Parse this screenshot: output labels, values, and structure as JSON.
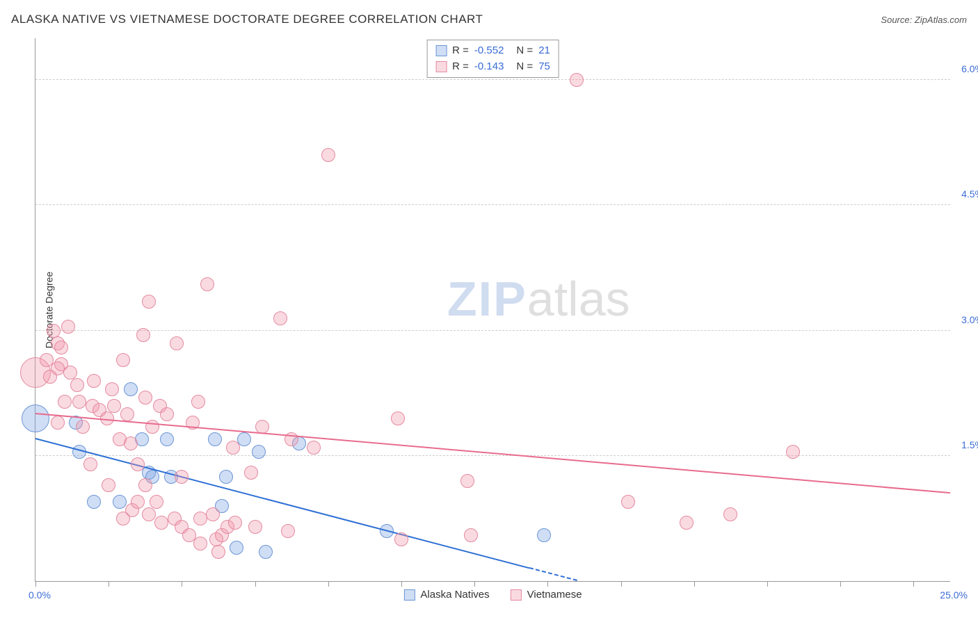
{
  "title": "ALASKA NATIVE VS VIETNAMESE DOCTORATE DEGREE CORRELATION CHART",
  "source_label": "Source:",
  "source_name": "ZipAtlas.com",
  "y_axis_title": "Doctorate Degree",
  "chart": {
    "type": "scatter",
    "xlim": [
      0,
      25
    ],
    "ylim": [
      0,
      6.5
    ],
    "x_origin_label": "0.0%",
    "x_max_label": "25.0%",
    "y_ticks": [
      1.5,
      3.0,
      4.5,
      6.0
    ],
    "y_tick_labels": [
      "1.5%",
      "3.0%",
      "4.5%",
      "6.0%"
    ],
    "x_tick_positions": [
      0,
      2,
      4,
      6,
      8,
      10,
      12,
      14,
      16,
      18,
      20,
      22,
      24
    ],
    "background_color": "#ffffff",
    "grid_color": "#cccccc",
    "axis_color": "#999999",
    "series": [
      {
        "name": "Alaska Natives",
        "fill": "rgba(120, 160, 225, 0.35)",
        "stroke": "#6a95d6",
        "trend_color": "#2d6fd4",
        "trend": {
          "x1": 0,
          "y1": 1.7,
          "x2": 14.8,
          "y2": 0.0,
          "dash_after_x": 13.5
        },
        "marker_r": 10,
        "points": [
          {
            "x": 0.0,
            "y": 1.95,
            "r": 20
          },
          {
            "x": 1.1,
            "y": 1.9
          },
          {
            "x": 1.2,
            "y": 1.55
          },
          {
            "x": 2.6,
            "y": 2.3
          },
          {
            "x": 1.6,
            "y": 0.95
          },
          {
            "x": 2.3,
            "y": 0.95
          },
          {
            "x": 3.1,
            "y": 1.3
          },
          {
            "x": 2.9,
            "y": 1.7
          },
          {
            "x": 3.2,
            "y": 1.25
          },
          {
            "x": 3.7,
            "y": 1.25
          },
          {
            "x": 3.6,
            "y": 1.7
          },
          {
            "x": 5.1,
            "y": 0.9
          },
          {
            "x": 5.7,
            "y": 1.7
          },
          {
            "x": 4.9,
            "y": 1.7
          },
          {
            "x": 6.1,
            "y": 1.55
          },
          {
            "x": 5.2,
            "y": 1.25
          },
          {
            "x": 5.5,
            "y": 0.4
          },
          {
            "x": 6.3,
            "y": 0.35
          },
          {
            "x": 7.2,
            "y": 1.65
          },
          {
            "x": 9.6,
            "y": 0.6
          },
          {
            "x": 13.9,
            "y": 0.55
          }
        ]
      },
      {
        "name": "Vietnamese",
        "fill": "rgba(240, 150, 170, 0.35)",
        "stroke": "#e4899f",
        "trend_color": "#e86b8e",
        "trend": {
          "x1": 0,
          "y1": 2.0,
          "x2": 25,
          "y2": 1.05
        },
        "marker_r": 10,
        "points": [
          {
            "x": 0.0,
            "y": 2.5,
            "r": 22
          },
          {
            "x": 0.3,
            "y": 2.65
          },
          {
            "x": 0.5,
            "y": 3.0
          },
          {
            "x": 0.6,
            "y": 2.85
          },
          {
            "x": 0.4,
            "y": 2.45
          },
          {
            "x": 0.8,
            "y": 2.15
          },
          {
            "x": 0.6,
            "y": 1.9
          },
          {
            "x": 0.7,
            "y": 2.6
          },
          {
            "x": 0.7,
            "y": 2.8
          },
          {
            "x": 0.6,
            "y": 2.55
          },
          {
            "x": 0.95,
            "y": 2.5
          },
          {
            "x": 0.9,
            "y": 3.05
          },
          {
            "x": 1.15,
            "y": 2.35
          },
          {
            "x": 1.2,
            "y": 2.15
          },
          {
            "x": 1.3,
            "y": 1.85
          },
          {
            "x": 1.6,
            "y": 2.4
          },
          {
            "x": 1.55,
            "y": 2.1
          },
          {
            "x": 1.5,
            "y": 1.4
          },
          {
            "x": 1.75,
            "y": 2.05
          },
          {
            "x": 1.95,
            "y": 1.95
          },
          {
            "x": 2.15,
            "y": 2.1
          },
          {
            "x": 2.0,
            "y": 1.15
          },
          {
            "x": 2.1,
            "y": 2.3
          },
          {
            "x": 2.3,
            "y": 1.7
          },
          {
            "x": 2.4,
            "y": 2.65
          },
          {
            "x": 2.5,
            "y": 2.0
          },
          {
            "x": 2.4,
            "y": 0.75
          },
          {
            "x": 2.6,
            "y": 1.65
          },
          {
            "x": 2.65,
            "y": 0.85
          },
          {
            "x": 2.8,
            "y": 1.4
          },
          {
            "x": 2.8,
            "y": 0.95
          },
          {
            "x": 2.95,
            "y": 2.95
          },
          {
            "x": 3.0,
            "y": 1.15
          },
          {
            "x": 3.0,
            "y": 2.2
          },
          {
            "x": 3.1,
            "y": 0.8
          },
          {
            "x": 3.1,
            "y": 3.35
          },
          {
            "x": 3.2,
            "y": 1.85
          },
          {
            "x": 3.3,
            "y": 0.95
          },
          {
            "x": 3.4,
            "y": 2.1
          },
          {
            "x": 3.45,
            "y": 0.7
          },
          {
            "x": 3.6,
            "y": 2.0
          },
          {
            "x": 3.8,
            "y": 0.75
          },
          {
            "x": 3.85,
            "y": 2.85
          },
          {
            "x": 4.0,
            "y": 0.65
          },
          {
            "x": 4.0,
            "y": 1.25
          },
          {
            "x": 4.2,
            "y": 0.55
          },
          {
            "x": 4.3,
            "y": 1.9
          },
          {
            "x": 4.45,
            "y": 2.15
          },
          {
            "x": 4.5,
            "y": 0.75
          },
          {
            "x": 4.5,
            "y": 0.45
          },
          {
            "x": 4.7,
            "y": 3.55
          },
          {
            "x": 4.85,
            "y": 0.8
          },
          {
            "x": 4.95,
            "y": 0.5
          },
          {
            "x": 5.0,
            "y": 0.35
          },
          {
            "x": 5.1,
            "y": 0.55
          },
          {
            "x": 5.25,
            "y": 0.65
          },
          {
            "x": 5.4,
            "y": 1.6
          },
          {
            "x": 5.45,
            "y": 0.7
          },
          {
            "x": 5.9,
            "y": 1.3
          },
          {
            "x": 6.0,
            "y": 0.65
          },
          {
            "x": 6.2,
            "y": 1.85
          },
          {
            "x": 6.7,
            "y": 3.15
          },
          {
            "x": 6.9,
            "y": 0.6
          },
          {
            "x": 7.0,
            "y": 1.7
          },
          {
            "x": 7.6,
            "y": 1.6
          },
          {
            "x": 8.0,
            "y": 5.1
          },
          {
            "x": 9.9,
            "y": 1.95
          },
          {
            "x": 10.0,
            "y": 0.5
          },
          {
            "x": 11.8,
            "y": 1.2
          },
          {
            "x": 11.9,
            "y": 0.55
          },
          {
            "x": 14.8,
            "y": 6.0
          },
          {
            "x": 16.2,
            "y": 0.95
          },
          {
            "x": 17.8,
            "y": 0.7
          },
          {
            "x": 19.0,
            "y": 0.8
          },
          {
            "x": 20.7,
            "y": 1.55
          }
        ]
      }
    ]
  },
  "stats": [
    {
      "r": "-0.552",
      "n": "21"
    },
    {
      "r": "-0.143",
      "n": "75"
    }
  ],
  "legend_labels": [
    "Alaska Natives",
    "Vietnamese"
  ],
  "watermark": {
    "part1": "ZIP",
    "part2": "atlas"
  }
}
